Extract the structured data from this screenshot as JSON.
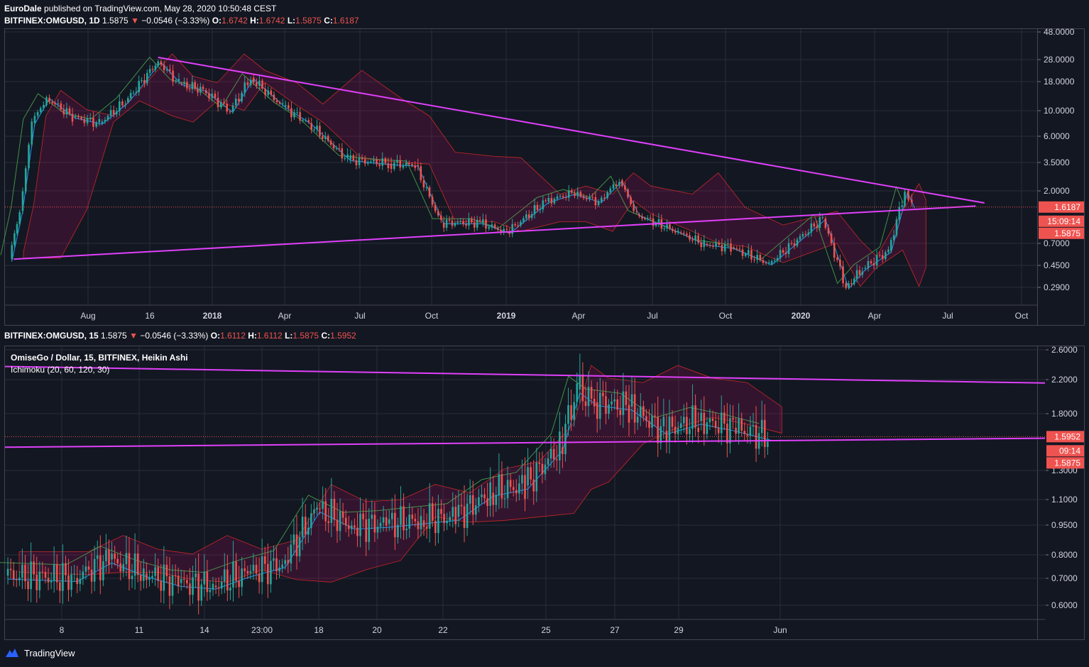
{
  "header": {
    "publisher": "EuroDale",
    "published_text": "published on TradingView.com, May 28, 2020 10:50:48 CEST"
  },
  "pane1": {
    "symbol": "BITFINEX:OMGUSD, 1D",
    "last": "1.5875",
    "arrow": "▼",
    "change": "−0.0546 (−3.33%)",
    "o_label": "O:",
    "o": "1.6742",
    "h_label": "H:",
    "h": "1.6742",
    "l_label": "L:",
    "l": "1.5875",
    "c_label": "C:",
    "c": "1.6187",
    "price_labels": [
      "48.0000",
      "28.0000",
      "18.0000",
      "10.0000",
      "6.0000",
      "3.5000",
      "2.0000",
      "0.7000",
      "0.4500",
      "0.2900"
    ],
    "price_badge": "1.6187",
    "timer_badge": "15:09:14",
    "last_badge": "1.5875",
    "time_labels": [
      "Aug",
      "16",
      "2018",
      "Apr",
      "Jul",
      "Oct",
      "2019",
      "Apr",
      "Jul",
      "Oct",
      "2020",
      "Apr",
      "Jul",
      "Oct"
    ]
  },
  "pane2": {
    "symbol": "BITFINEX:OMGUSD, 15",
    "last": "1.5875",
    "arrow": "▼",
    "change": "−0.0546 (−3.33%)",
    "o_label": "O:",
    "o": "1.6112",
    "h_label": "H:",
    "h": "1.6112",
    "l_label": "L:",
    "l": "1.5875",
    "c_label": "C:",
    "c": "1.5952",
    "overlay_title": "OmiseGo / Dollar, 15, BITFINEX, Heikin Ashi",
    "overlay_indicator": "Ichimoku (20, 60, 120, 30)",
    "price_labels": [
      "2.6000",
      "2.2000",
      "1.8000",
      "1.3000",
      "1.1000",
      "0.9500",
      "0.8000",
      "0.7000",
      "0.6000"
    ],
    "price_badge": "1.5952",
    "timer_badge": "09:14",
    "last_badge": "1.5875",
    "time_labels": [
      "8",
      "11",
      "14",
      "23:00",
      "18",
      "20",
      "22",
      "25",
      "27",
      "29",
      "Jun"
    ]
  },
  "colors": {
    "background": "#131722",
    "trendline": "#e040fb",
    "up": "#26a69a",
    "down": "#ef5350",
    "cloud_bear": "#880e4f",
    "lagging": "#4caf50",
    "conversion": "#2196f3"
  },
  "footer": {
    "brand": "TradingView"
  },
  "chart_data": [
    {
      "type": "candlestick",
      "symbol": "BITFINEX:OMGUSD",
      "interval": "1D",
      "y_scale": "log",
      "ylim": [
        0.25,
        48
      ],
      "x_range": [
        "2017-07-15",
        "2020-10-20"
      ],
      "last_close": 1.6187,
      "approx_close_series": [
        {
          "date": "2017-07-20",
          "close": 0.6
        },
        {
          "date": "2017-08-01",
          "close": 1.5
        },
        {
          "date": "2017-08-15",
          "close": 8
        },
        {
          "date": "2017-09-01",
          "close": 13
        },
        {
          "date": "2017-10-01",
          "close": 9
        },
        {
          "date": "2017-11-01",
          "close": 8
        },
        {
          "date": "2017-12-01",
          "close": 12
        },
        {
          "date": "2018-01-08",
          "close": 26
        },
        {
          "date": "2018-02-01",
          "close": 17
        },
        {
          "date": "2018-03-01",
          "close": 15
        },
        {
          "date": "2018-04-01",
          "close": 10
        },
        {
          "date": "2018-04-25",
          "close": 19
        },
        {
          "date": "2018-06-01",
          "close": 11
        },
        {
          "date": "2018-07-01",
          "close": 8
        },
        {
          "date": "2018-08-15",
          "close": 4
        },
        {
          "date": "2018-10-01",
          "close": 3.7
        },
        {
          "date": "2018-11-01",
          "close": 3.6
        },
        {
          "date": "2018-12-01",
          "close": 1.2
        },
        {
          "date": "2019-01-15",
          "close": 1.2
        },
        {
          "date": "2019-02-15",
          "close": 1.0
        },
        {
          "date": "2019-04-01",
          "close": 1.8
        },
        {
          "date": "2019-05-01",
          "close": 2.1
        },
        {
          "date": "2019-06-01",
          "close": 1.8
        },
        {
          "date": "2019-06-25",
          "close": 2.7
        },
        {
          "date": "2019-07-15",
          "close": 1.4
        },
        {
          "date": "2019-09-01",
          "close": 1.0
        },
        {
          "date": "2019-10-01",
          "close": 0.8
        },
        {
          "date": "2019-11-01",
          "close": 0.75
        },
        {
          "date": "2019-12-15",
          "close": 0.55
        },
        {
          "date": "2020-02-15",
          "close": 1.3
        },
        {
          "date": "2020-03-13",
          "close": 0.35
        },
        {
          "date": "2020-04-01",
          "close": 0.5
        },
        {
          "date": "2020-05-01",
          "close": 0.7
        },
        {
          "date": "2020-05-20",
          "close": 2.2
        },
        {
          "date": "2020-05-28",
          "close": 1.6187
        }
      ],
      "trendlines": [
        {
          "from": {
            "date": "2018-01-08",
            "price": 28
          },
          "to": {
            "date": "2020-08-20",
            "price": 1.75
          }
        },
        {
          "from": {
            "date": "2017-07-25",
            "price": 0.6
          },
          "to": {
            "date": "2020-08-10",
            "price": 1.65
          }
        }
      ]
    },
    {
      "type": "candlestick",
      "symbol": "BITFINEX:OMGUSD",
      "interval": "15",
      "chart_style": "Heikin Ashi",
      "y_scale": "log",
      "ylim": [
        0.55,
        2.7
      ],
      "x_range": [
        "2020-05-06",
        "2020-06-05"
      ],
      "last_close": 1.5952,
      "approx_close_series": [
        {
          "date": "2020-05-06",
          "close": 0.71
        },
        {
          "date": "2020-05-08",
          "close": 0.7
        },
        {
          "date": "2020-05-09",
          "close": 0.78
        },
        {
          "date": "2020-05-10",
          "close": 0.72
        },
        {
          "date": "2020-05-11",
          "close": 0.68
        },
        {
          "date": "2020-05-12",
          "close": 0.67
        },
        {
          "date": "2020-05-13",
          "close": 0.72
        },
        {
          "date": "2020-05-14",
          "close": 0.76
        },
        {
          "date": "2020-05-15",
          "close": 1.05
        },
        {
          "date": "2020-05-16",
          "close": 0.95
        },
        {
          "date": "2020-05-17",
          "close": 0.96
        },
        {
          "date": "2020-05-18",
          "close": 0.98
        },
        {
          "date": "2020-05-19",
          "close": 1.0
        },
        {
          "date": "2020-05-20",
          "close": 1.15
        },
        {
          "date": "2020-05-21",
          "close": 1.2
        },
        {
          "date": "2020-05-22",
          "close": 1.5
        },
        {
          "date": "2020-05-22T12:00",
          "close": 2.1
        },
        {
          "date": "2020-05-23",
          "close": 1.95
        },
        {
          "date": "2020-05-24",
          "close": 1.9
        },
        {
          "date": "2020-05-25",
          "close": 1.65
        },
        {
          "date": "2020-05-26",
          "close": 1.75
        },
        {
          "date": "2020-05-27",
          "close": 1.68
        },
        {
          "date": "2020-05-28",
          "close": 1.5952
        }
      ],
      "trendlines": [
        {
          "from": {
            "date": "2020-05-06",
            "price": 2.4
          },
          "to": {
            "date": "2020-06-05",
            "price": 2.18
          }
        },
        {
          "from": {
            "date": "2020-05-06",
            "price": 1.5
          },
          "to": {
            "date": "2020-06-05",
            "price": 1.58
          }
        }
      ]
    }
  ]
}
